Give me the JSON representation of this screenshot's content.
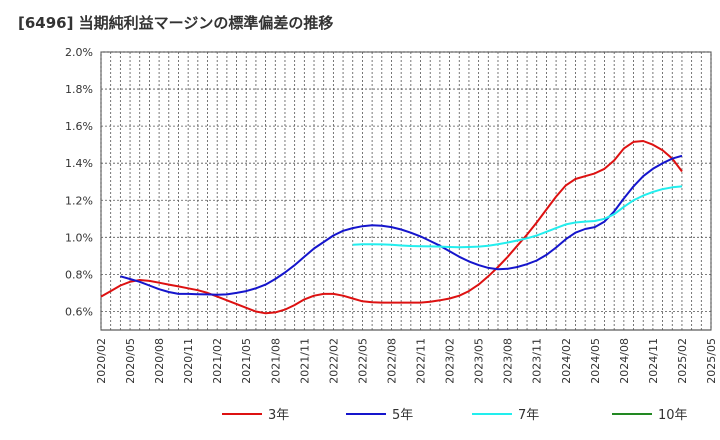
{
  "chart_data": {
    "type": "line",
    "title": "[6496]  当期純利益マージンの標準偏差の推移",
    "xlabel": "",
    "ylabel": "",
    "ylim": [
      0.5,
      2.0
    ],
    "y_ticks": [
      0.6,
      0.8,
      1.0,
      1.2,
      1.4,
      1.6,
      1.8,
      2.0
    ],
    "y_tick_labels": [
      "0.6%",
      "0.8%",
      "1.0%",
      "1.2%",
      "1.4%",
      "1.6%",
      "1.8%",
      "2.0%"
    ],
    "x_tick_labels": [
      "2020/02",
      "2020/05",
      "2020/08",
      "2020/11",
      "2021/02",
      "2021/05",
      "2021/08",
      "2021/11",
      "2022/02",
      "2022/05",
      "2022/08",
      "2022/11",
      "2023/02",
      "2023/05",
      "2023/08",
      "2023/11",
      "2024/02",
      "2024/05",
      "2024/08",
      "2024/11",
      "2025/02",
      "2025/05"
    ],
    "grid": true,
    "legend_position": "bottom",
    "series": [
      {
        "name": "3年",
        "color": "#dd1111",
        "points": [
          [
            "2020/02",
            0.68
          ],
          [
            "2020/03",
            0.71
          ],
          [
            "2020/04",
            0.74
          ],
          [
            "2020/05",
            0.76
          ],
          [
            "2020/06",
            0.77
          ],
          [
            "2020/07",
            0.765
          ],
          [
            "2020/08",
            0.755
          ],
          [
            "2020/09",
            0.745
          ],
          [
            "2020/10",
            0.735
          ],
          [
            "2020/11",
            0.725
          ],
          [
            "2020/12",
            0.715
          ],
          [
            "2021/01",
            0.7
          ],
          [
            "2021/02",
            0.68
          ],
          [
            "2021/03",
            0.66
          ],
          [
            "2021/04",
            0.64
          ],
          [
            "2021/05",
            0.62
          ],
          [
            "2021/06",
            0.6
          ],
          [
            "2021/07",
            0.59
          ],
          [
            "2021/08",
            0.595
          ],
          [
            "2021/09",
            0.61
          ],
          [
            "2021/10",
            0.635
          ],
          [
            "2021/11",
            0.665
          ],
          [
            "2021/12",
            0.685
          ],
          [
            "2022/01",
            0.695
          ],
          [
            "2022/02",
            0.695
          ],
          [
            "2022/03",
            0.685
          ],
          [
            "2022/04",
            0.67
          ],
          [
            "2022/05",
            0.655
          ],
          [
            "2022/06",
            0.65
          ],
          [
            "2022/07",
            0.648
          ],
          [
            "2022/08",
            0.648
          ],
          [
            "2022/09",
            0.648
          ],
          [
            "2022/10",
            0.648
          ],
          [
            "2022/11",
            0.648
          ],
          [
            "2022/12",
            0.652
          ],
          [
            "2023/01",
            0.66
          ],
          [
            "2023/02",
            0.67
          ],
          [
            "2023/03",
            0.685
          ],
          [
            "2023/04",
            0.71
          ],
          [
            "2023/05",
            0.745
          ],
          [
            "2023/06",
            0.79
          ],
          [
            "2023/07",
            0.84
          ],
          [
            "2023/08",
            0.895
          ],
          [
            "2023/09",
            0.955
          ],
          [
            "2023/10",
            1.015
          ],
          [
            "2023/11",
            1.08
          ],
          [
            "2023/12",
            1.15
          ],
          [
            "2024/01",
            1.22
          ],
          [
            "2024/02",
            1.28
          ],
          [
            "2024/03",
            1.315
          ],
          [
            "2024/04",
            1.33
          ],
          [
            "2024/05",
            1.345
          ],
          [
            "2024/06",
            1.37
          ],
          [
            "2024/07",
            1.415
          ],
          [
            "2024/08",
            1.48
          ],
          [
            "2024/09",
            1.515
          ],
          [
            "2024/10",
            1.52
          ],
          [
            "2024/11",
            1.5
          ],
          [
            "2024/12",
            1.47
          ],
          [
            "2025/01",
            1.425
          ],
          [
            "2025/02",
            1.355
          ]
        ]
      },
      {
        "name": "5年",
        "color": "#1515cc",
        "points": [
          [
            "2020/04",
            0.79
          ],
          [
            "2020/05",
            0.775
          ],
          [
            "2020/06",
            0.76
          ],
          [
            "2020/07",
            0.74
          ],
          [
            "2020/08",
            0.72
          ],
          [
            "2020/09",
            0.705
          ],
          [
            "2020/10",
            0.695
          ],
          [
            "2020/11",
            0.695
          ],
          [
            "2020/12",
            0.693
          ],
          [
            "2021/01",
            0.692
          ],
          [
            "2021/02",
            0.69
          ],
          [
            "2021/03",
            0.692
          ],
          [
            "2021/04",
            0.7
          ],
          [
            "2021/05",
            0.71
          ],
          [
            "2021/06",
            0.725
          ],
          [
            "2021/07",
            0.745
          ],
          [
            "2021/08",
            0.775
          ],
          [
            "2021/09",
            0.81
          ],
          [
            "2021/10",
            0.85
          ],
          [
            "2021/11",
            0.895
          ],
          [
            "2021/12",
            0.94
          ],
          [
            "2022/01",
            0.975
          ],
          [
            "2022/02",
            1.01
          ],
          [
            "2022/03",
            1.035
          ],
          [
            "2022/04",
            1.05
          ],
          [
            "2022/05",
            1.06
          ],
          [
            "2022/06",
            1.065
          ],
          [
            "2022/07",
            1.063
          ],
          [
            "2022/08",
            1.055
          ],
          [
            "2022/09",
            1.042
          ],
          [
            "2022/10",
            1.025
          ],
          [
            "2022/11",
            1.005
          ],
          [
            "2022/12",
            0.98
          ],
          [
            "2023/01",
            0.955
          ],
          [
            "2023/02",
            0.925
          ],
          [
            "2023/03",
            0.895
          ],
          [
            "2023/04",
            0.87
          ],
          [
            "2023/05",
            0.85
          ],
          [
            "2023/06",
            0.835
          ],
          [
            "2023/07",
            0.828
          ],
          [
            "2023/08",
            0.83
          ],
          [
            "2023/09",
            0.84
          ],
          [
            "2023/10",
            0.855
          ],
          [
            "2023/11",
            0.875
          ],
          [
            "2023/12",
            0.905
          ],
          [
            "2024/01",
            0.945
          ],
          [
            "2024/02",
            0.99
          ],
          [
            "2024/03",
            1.025
          ],
          [
            "2024/04",
            1.045
          ],
          [
            "2024/05",
            1.055
          ],
          [
            "2024/06",
            1.085
          ],
          [
            "2024/07",
            1.14
          ],
          [
            "2024/08",
            1.21
          ],
          [
            "2024/09",
            1.275
          ],
          [
            "2024/10",
            1.33
          ],
          [
            "2024/11",
            1.37
          ],
          [
            "2024/12",
            1.4
          ],
          [
            "2025/01",
            1.425
          ],
          [
            "2025/02",
            1.44
          ]
        ]
      },
      {
        "name": "7年",
        "color": "#22eeee",
        "points": [
          [
            "2022/04",
            0.96
          ],
          [
            "2022/05",
            0.963
          ],
          [
            "2022/06",
            0.963
          ],
          [
            "2022/07",
            0.962
          ],
          [
            "2022/08",
            0.96
          ],
          [
            "2022/09",
            0.956
          ],
          [
            "2022/10",
            0.953
          ],
          [
            "2022/11",
            0.952
          ],
          [
            "2022/12",
            0.951
          ],
          [
            "2023/01",
            0.95
          ],
          [
            "2023/02",
            0.948
          ],
          [
            "2023/03",
            0.947
          ],
          [
            "2023/04",
            0.948
          ],
          [
            "2023/05",
            0.95
          ],
          [
            "2023/06",
            0.955
          ],
          [
            "2023/07",
            0.963
          ],
          [
            "2023/08",
            0.972
          ],
          [
            "2023/09",
            0.983
          ],
          [
            "2023/10",
            0.995
          ],
          [
            "2023/11",
            1.01
          ],
          [
            "2023/12",
            1.03
          ],
          [
            "2024/01",
            1.05
          ],
          [
            "2024/02",
            1.07
          ],
          [
            "2024/03",
            1.08
          ],
          [
            "2024/04",
            1.085
          ],
          [
            "2024/05",
            1.088
          ],
          [
            "2024/06",
            1.1
          ],
          [
            "2024/07",
            1.125
          ],
          [
            "2024/08",
            1.165
          ],
          [
            "2024/09",
            1.2
          ],
          [
            "2024/10",
            1.225
          ],
          [
            "2024/11",
            1.245
          ],
          [
            "2024/12",
            1.26
          ],
          [
            "2025/01",
            1.27
          ],
          [
            "2025/02",
            1.275
          ]
        ]
      },
      {
        "name": "10年",
        "color": "#228822",
        "points": []
      }
    ]
  }
}
